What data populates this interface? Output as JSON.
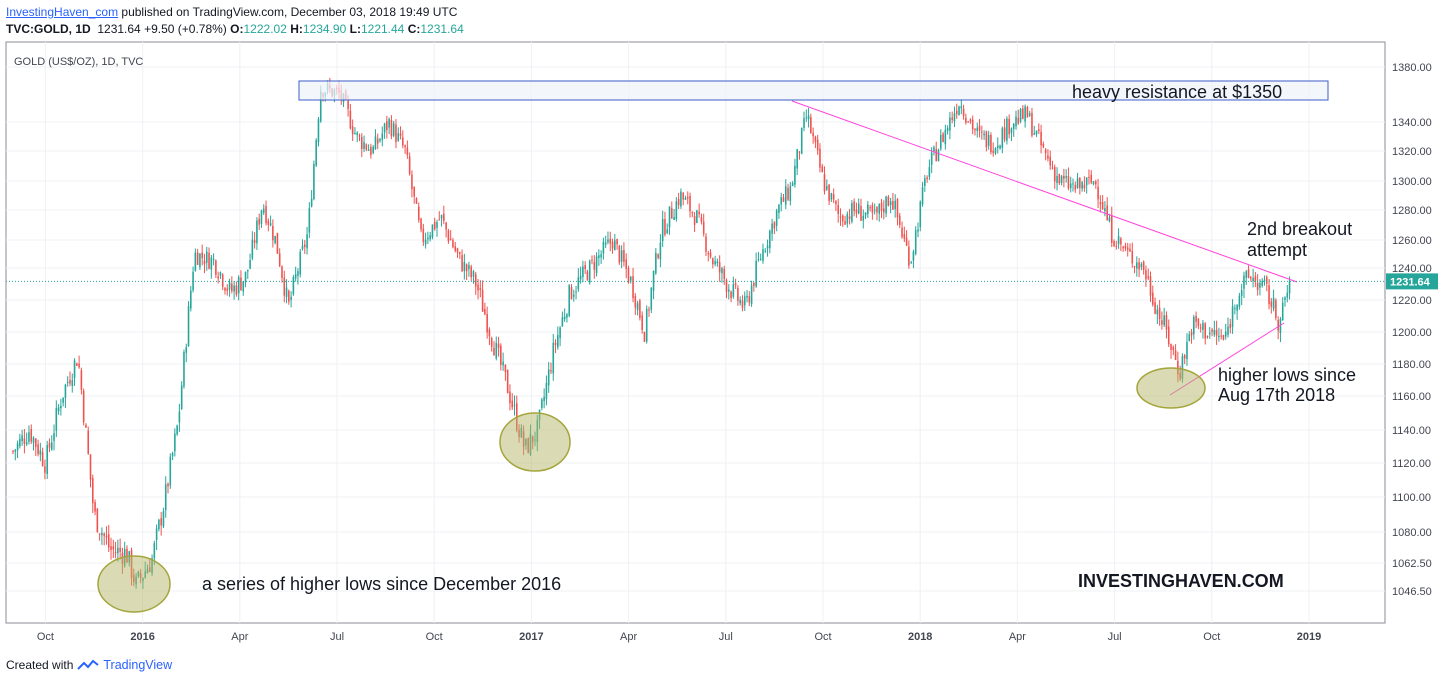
{
  "header": {
    "author": "InvestingHaven_com",
    "published": "published on TradingView.com, December 03, 2018 19:49 UTC",
    "symbol": "TVC:GOLD, 1D",
    "last": "1231.64",
    "change": "+9.50 (+0.78%)",
    "o_label": "O:",
    "o": "1222.02",
    "h_label": "H:",
    "h": "1234.90",
    "l_label": "L:",
    "l": "1221.44",
    "c_label": "C:",
    "c": "1231.64"
  },
  "chart_title": "GOLD (US$/OZ), 1D, TVC",
  "watermark": "INVESTINGHAVEN.COM",
  "annotations": {
    "resistance": "heavy resistance at $1350",
    "breakout_1": "2nd breakout",
    "breakout_2": "attempt",
    "higher_lows_1": "higher lows since",
    "higher_lows_2": "Aug 17th 2018",
    "series_lows": "a series of higher lows since December 2016"
  },
  "footer": {
    "created_with": "Created with",
    "brand": "TradingView"
  },
  "colors": {
    "up": "#26a69a",
    "down": "#ef5350",
    "trend": "#ff44dd",
    "box": "#3c5cc8",
    "ellipse": "#b5b76a",
    "price": "#26a69a"
  },
  "chart_data": {
    "type": "candlestick",
    "title": "GOLD (US$/OZ), 1D, TVC",
    "y_ticks": [
      1046.5,
      1062.5,
      1080,
      1100,
      1120,
      1140,
      1160,
      1180,
      1200,
      1220,
      1240,
      1260,
      1280,
      1300,
      1320,
      1340,
      1380
    ],
    "y_tick_labels": [
      "1046.50",
      "1062.50",
      "1080.00",
      "1100.00",
      "1120.00",
      "1140.00",
      "1160.00",
      "1180.00",
      "1200.00",
      "1220.00",
      "1240.00",
      "1260.00",
      "1280.00",
      "1300.00",
      "1320.00",
      "1340.00",
      "1380.00"
    ],
    "x_ticks": [
      "Oct",
      "2016",
      "Apr",
      "Jul",
      "Oct",
      "2017",
      "Apr",
      "Jul",
      "Oct",
      "2018",
      "Apr",
      "Jul",
      "Oct",
      "2019"
    ],
    "x_tick_months": [
      9,
      12,
      15,
      18,
      21,
      24,
      27,
      30,
      33,
      36,
      39,
      42,
      45,
      48
    ],
    "last_price": 1231.64,
    "last_price_label": "1231.64",
    "resistance_zone": [
      1350,
      1362
    ],
    "approx_closes": [
      [
        8,
        1127
      ],
      [
        8.5,
        1140
      ],
      [
        9,
        1120
      ],
      [
        9.5,
        1160
      ],
      [
        10,
        1185
      ],
      [
        10.5,
        1090
      ],
      [
        11,
        1070
      ],
      [
        11.5,
        1068
      ],
      [
        11.8,
        1050
      ],
      [
        12.3,
        1065
      ],
      [
        12.7,
        1100
      ],
      [
        13.1,
        1145
      ],
      [
        13.6,
        1250
      ],
      [
        14.2,
        1245
      ],
      [
        14.7,
        1225
      ],
      [
        15.2,
        1235
      ],
      [
        15.7,
        1285
      ],
      [
        16.1,
        1260
      ],
      [
        16.5,
        1215
      ],
      [
        17.1,
        1265
      ],
      [
        17.5,
        1365
      ],
      [
        18.1,
        1360
      ],
      [
        18.6,
        1330
      ],
      [
        19.1,
        1320
      ],
      [
        19.6,
        1340
      ],
      [
        20.1,
        1320
      ],
      [
        20.6,
        1260
      ],
      [
        21.2,
        1275
      ],
      [
        21.8,
        1245
      ],
      [
        22.3,
        1230
      ],
      [
        22.8,
        1195
      ],
      [
        23.2,
        1170
      ],
      [
        23.8,
        1128
      ],
      [
        24.2,
        1140
      ],
      [
        24.7,
        1190
      ],
      [
        25.2,
        1225
      ],
      [
        25.8,
        1240
      ],
      [
        26.5,
        1260
      ],
      [
        27.1,
        1230
      ],
      [
        27.5,
        1200
      ],
      [
        28.0,
        1265
      ],
      [
        28.6,
        1290
      ],
      [
        29.1,
        1275
      ],
      [
        29.6,
        1245
      ],
      [
        30.2,
        1225
      ],
      [
        30.6,
        1215
      ],
      [
        31.1,
        1250
      ],
      [
        31.6,
        1280
      ],
      [
        32.0,
        1295
      ],
      [
        32.5,
        1345
      ],
      [
        33.0,
        1300
      ],
      [
        33.5,
        1275
      ],
      [
        34.0,
        1280
      ],
      [
        34.6,
        1275
      ],
      [
        35.1,
        1290
      ],
      [
        35.7,
        1245
      ],
      [
        36.2,
        1305
      ],
      [
        36.7,
        1330
      ],
      [
        37.2,
        1355
      ],
      [
        37.8,
        1330
      ],
      [
        38.3,
        1325
      ],
      [
        38.8,
        1340
      ],
      [
        39.3,
        1345
      ],
      [
        39.8,
        1320
      ],
      [
        40.3,
        1300
      ],
      [
        40.8,
        1295
      ],
      [
        41.4,
        1300
      ],
      [
        41.9,
        1265
      ],
      [
        42.4,
        1250
      ],
      [
        42.9,
        1240
      ],
      [
        43.3,
        1215
      ],
      [
        43.6,
        1200
      ],
      [
        44.0,
        1175
      ],
      [
        44.4,
        1205
      ],
      [
        44.9,
        1200
      ],
      [
        45.4,
        1195
      ],
      [
        45.8,
        1225
      ],
      [
        46.2,
        1235
      ],
      [
        46.7,
        1225
      ],
      [
        47.1,
        1205
      ],
      [
        47.4,
        1231.64
      ]
    ]
  }
}
